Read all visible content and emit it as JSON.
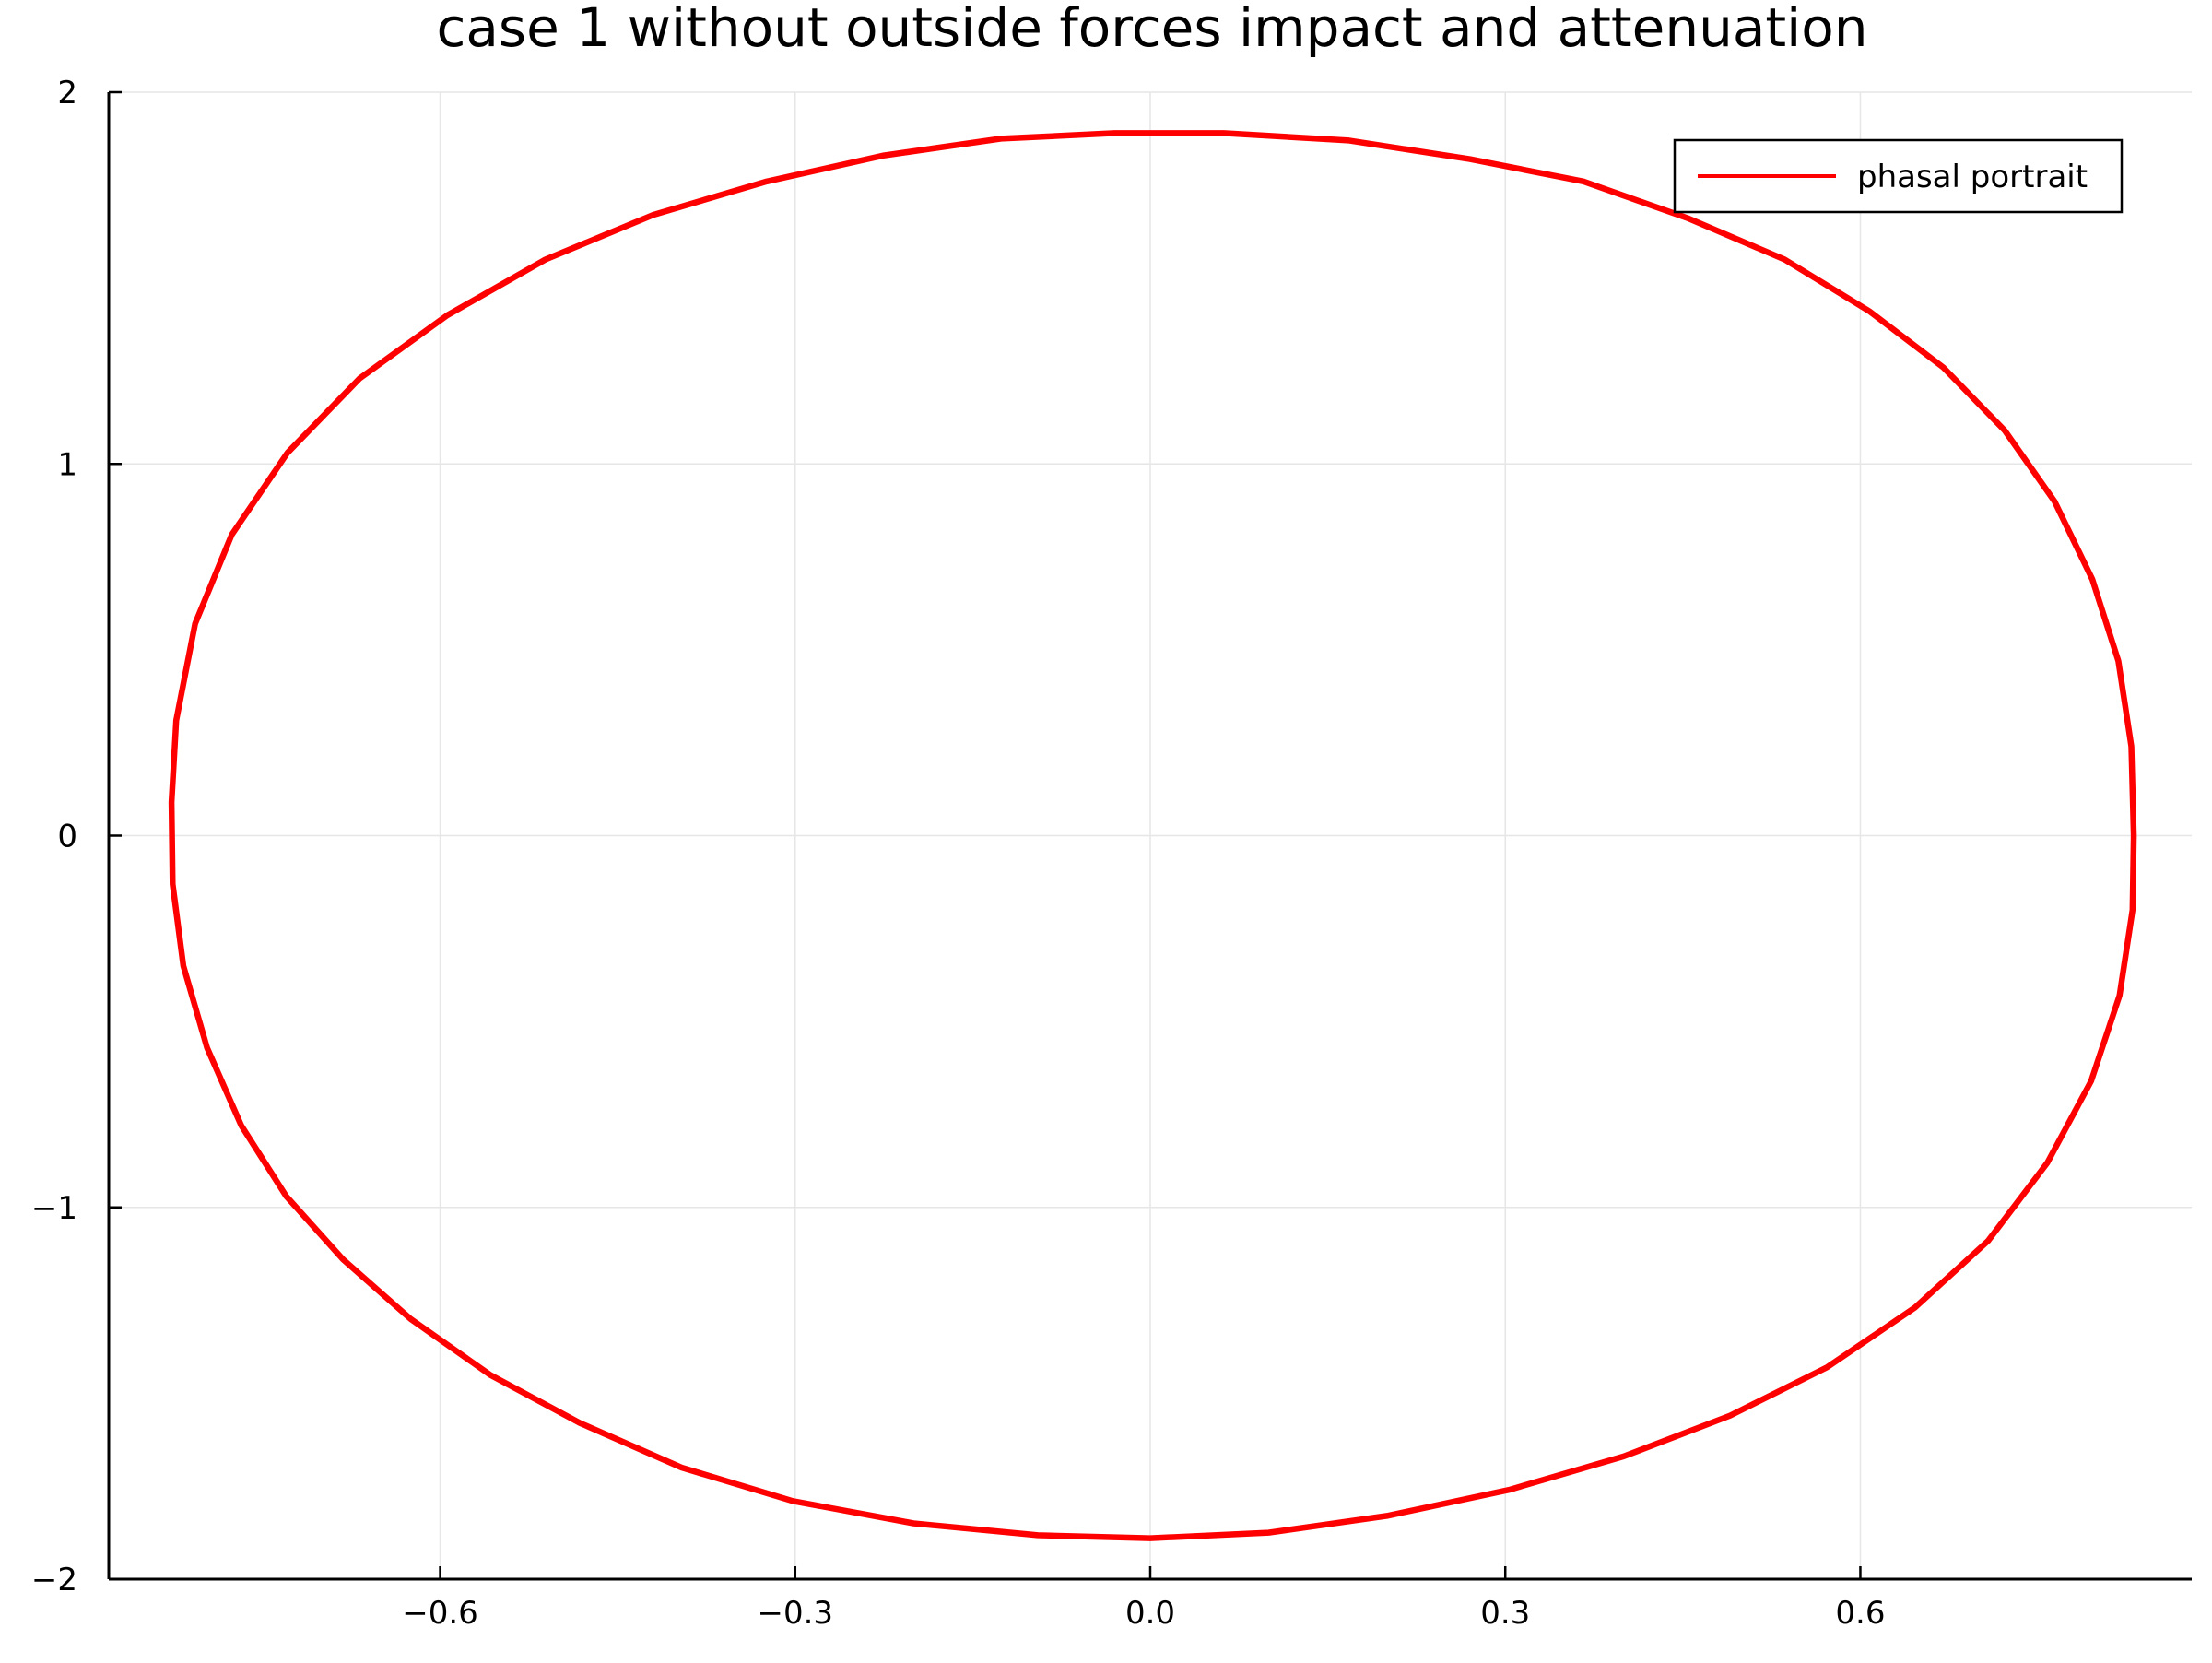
{
  "chart_data": {
    "type": "line",
    "title": "case 1 without outside forces impact and attenuation",
    "xlabel": "",
    "ylabel": "",
    "xlim": [
      -0.88,
      0.88
    ],
    "ylim": [
      -2.0,
      2.0
    ],
    "xticks": [
      -0.6,
      -0.3,
      0.0,
      0.3,
      0.6
    ],
    "xtick_labels": [
      "−0.6",
      "−0.3",
      "0.0",
      "0.3",
      "0.6"
    ],
    "yticks": [
      -2,
      -1,
      0,
      1,
      2
    ],
    "ytick_labels": [
      "−2",
      "−1",
      "0",
      "1",
      "2"
    ],
    "grid": true,
    "legend_position": "top-right",
    "series": [
      {
        "name": "phasal portrait",
        "color": "#ff0000",
        "points": [
          [
            0.831,
            0.0
          ],
          [
            0.829,
            0.24
          ],
          [
            0.818,
            0.47
          ],
          [
            0.796,
            0.69
          ],
          [
            0.764,
            0.9
          ],
          [
            0.722,
            1.09
          ],
          [
            0.67,
            1.26
          ],
          [
            0.608,
            1.41
          ],
          [
            0.536,
            1.55
          ],
          [
            0.455,
            1.66
          ],
          [
            0.366,
            1.76
          ],
          [
            0.27,
            1.82
          ],
          [
            0.168,
            1.87
          ],
          [
            0.062,
            1.89
          ],
          [
            -0.03,
            1.89
          ],
          [
            -0.126,
            1.875
          ],
          [
            -0.225,
            1.83
          ],
          [
            -0.324,
            1.76
          ],
          [
            -0.42,
            1.67
          ],
          [
            -0.511,
            1.55
          ],
          [
            -0.594,
            1.4
          ],
          [
            -0.668,
            1.23
          ],
          [
            -0.729,
            1.03
          ],
          [
            -0.776,
            0.81
          ],
          [
            -0.807,
            0.57
          ],
          [
            -0.823,
            0.31
          ],
          [
            -0.827,
            0.09
          ],
          [
            -0.826,
            -0.13
          ],
          [
            -0.817,
            -0.35
          ],
          [
            -0.797,
            -0.57
          ],
          [
            -0.768,
            -0.78
          ],
          [
            -0.73,
            -0.97
          ],
          [
            -0.682,
            -1.14
          ],
          [
            -0.625,
            -1.3
          ],
          [
            -0.558,
            -1.45
          ],
          [
            -0.482,
            -1.58
          ],
          [
            -0.396,
            -1.7
          ],
          [
            -0.302,
            -1.79
          ],
          [
            -0.2,
            -1.85
          ],
          [
            -0.095,
            -1.882
          ],
          [
            0.0,
            -1.89
          ],
          [
            0.1,
            -1.875
          ],
          [
            0.2,
            -1.83
          ],
          [
            0.303,
            -1.76
          ],
          [
            0.4,
            -1.67
          ],
          [
            0.49,
            -1.56
          ],
          [
            0.572,
            -1.43
          ],
          [
            0.646,
            -1.27
          ],
          [
            0.708,
            -1.09
          ],
          [
            0.758,
            -0.88
          ],
          [
            0.795,
            -0.66
          ],
          [
            0.819,
            -0.43
          ],
          [
            0.83,
            -0.2
          ],
          [
            0.831,
            0.0
          ]
        ]
      }
    ]
  }
}
